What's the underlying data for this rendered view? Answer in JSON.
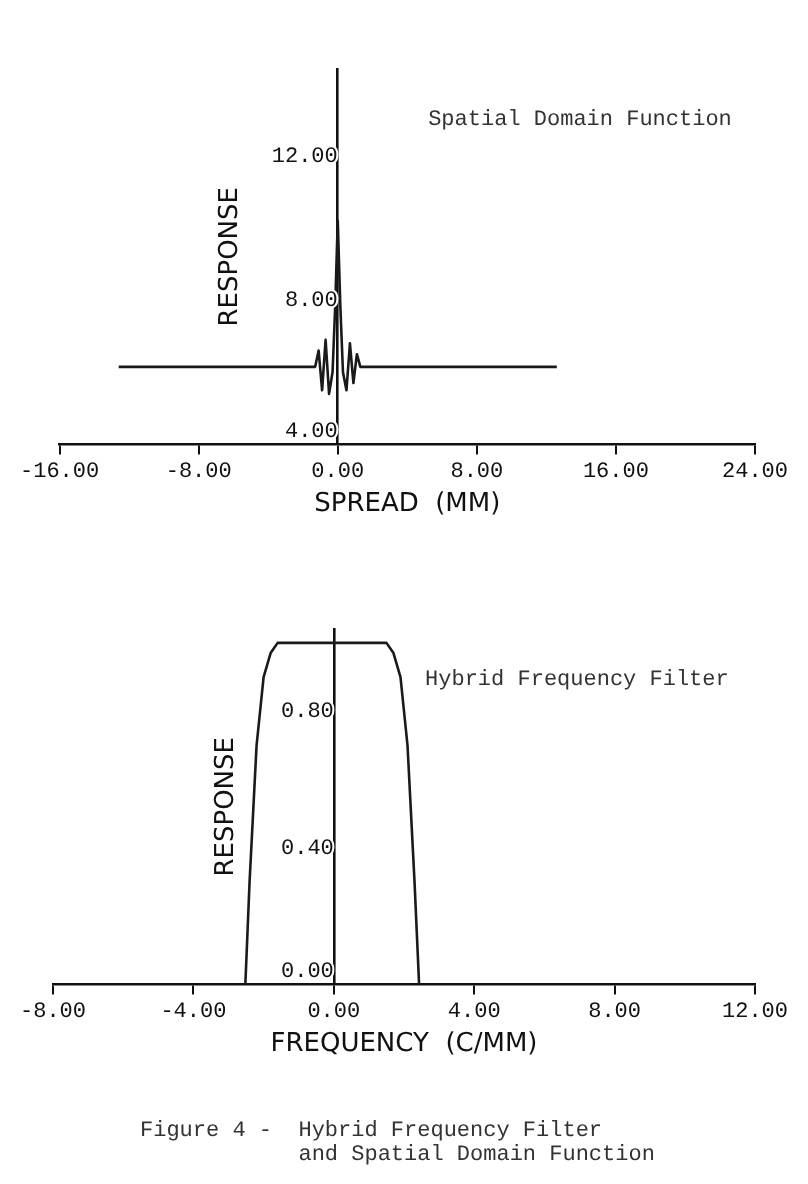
{
  "chart_data": [
    {
      "type": "line",
      "title": "Spatial Domain Function",
      "xlabel": "SPREAD  (MM)",
      "ylabel": "RESPONSE",
      "x": [
        -12.6,
        -1.3,
        -1.1,
        -0.9,
        -0.7,
        -0.5,
        -0.3,
        -0.15,
        0,
        0.15,
        0.3,
        0.5,
        0.7,
        0.9,
        1.1,
        1.3,
        12.6
      ],
      "values": [
        6.15,
        6.15,
        6.6,
        5.5,
        6.9,
        5.4,
        6.0,
        7.8,
        10.2,
        7.8,
        6.0,
        5.5,
        6.8,
        5.7,
        6.5,
        6.15,
        6.15
      ],
      "color": "#1a1a1a",
      "xlim": [
        -16,
        24
      ],
      "xticks": [
        {
          "value": -16,
          "label": "-16.00"
        },
        {
          "value": -8,
          "label": "-8.00"
        },
        {
          "value": 0,
          "label": "0.00"
        },
        {
          "value": 8,
          "label": "8.00"
        },
        {
          "value": 16,
          "label": "16.00"
        },
        {
          "value": 24,
          "label": "24.00"
        }
      ],
      "ylim": [
        4,
        14.4
      ],
      "yticks": [
        {
          "value": 4,
          "label": "4.00"
        },
        {
          "value": 8,
          "label": "8.00"
        },
        {
          "value": 12,
          "label": "12.00"
        }
      ],
      "marker": "none",
      "line_style": "solid"
    },
    {
      "type": "line",
      "title": "Hybrid Frequency Filter",
      "xlabel": "FREQUENCY  (C/MM)",
      "ylabel": "RESPONSE",
      "annotations": [
        "Figure 4 -  Hybrid Frequency Filter\n            and Spatial Domain Function"
      ],
      "x": [
        -2.52,
        -2.4,
        -2.2,
        -2.0,
        -1.8,
        -1.6,
        1.5,
        1.7,
        1.9,
        2.1,
        2.3,
        2.43
      ],
      "values": [
        0,
        0.3,
        0.7,
        0.9,
        0.97,
        1.0,
        1.0,
        0.97,
        0.9,
        0.7,
        0.3,
        0
      ],
      "color": "#1a1a1a",
      "xlim": [
        -8,
        12
      ],
      "xticks": [
        {
          "value": -8,
          "label": "-8.00"
        },
        {
          "value": -4,
          "label": "-4.00"
        },
        {
          "value": 0,
          "label": "0.00"
        },
        {
          "value": 4,
          "label": "4.00"
        },
        {
          "value": 8,
          "label": "8.00"
        },
        {
          "value": 12,
          "label": "12.00"
        }
      ],
      "ylim": [
        0,
        1.04
      ],
      "yticks": [
        {
          "value": 0,
          "label": "0.00"
        },
        {
          "value": 0.4,
          "label": "0.40"
        },
        {
          "value": 0.8,
          "label": "0.80"
        }
      ],
      "marker": "none",
      "line_style": "solid"
    }
  ]
}
